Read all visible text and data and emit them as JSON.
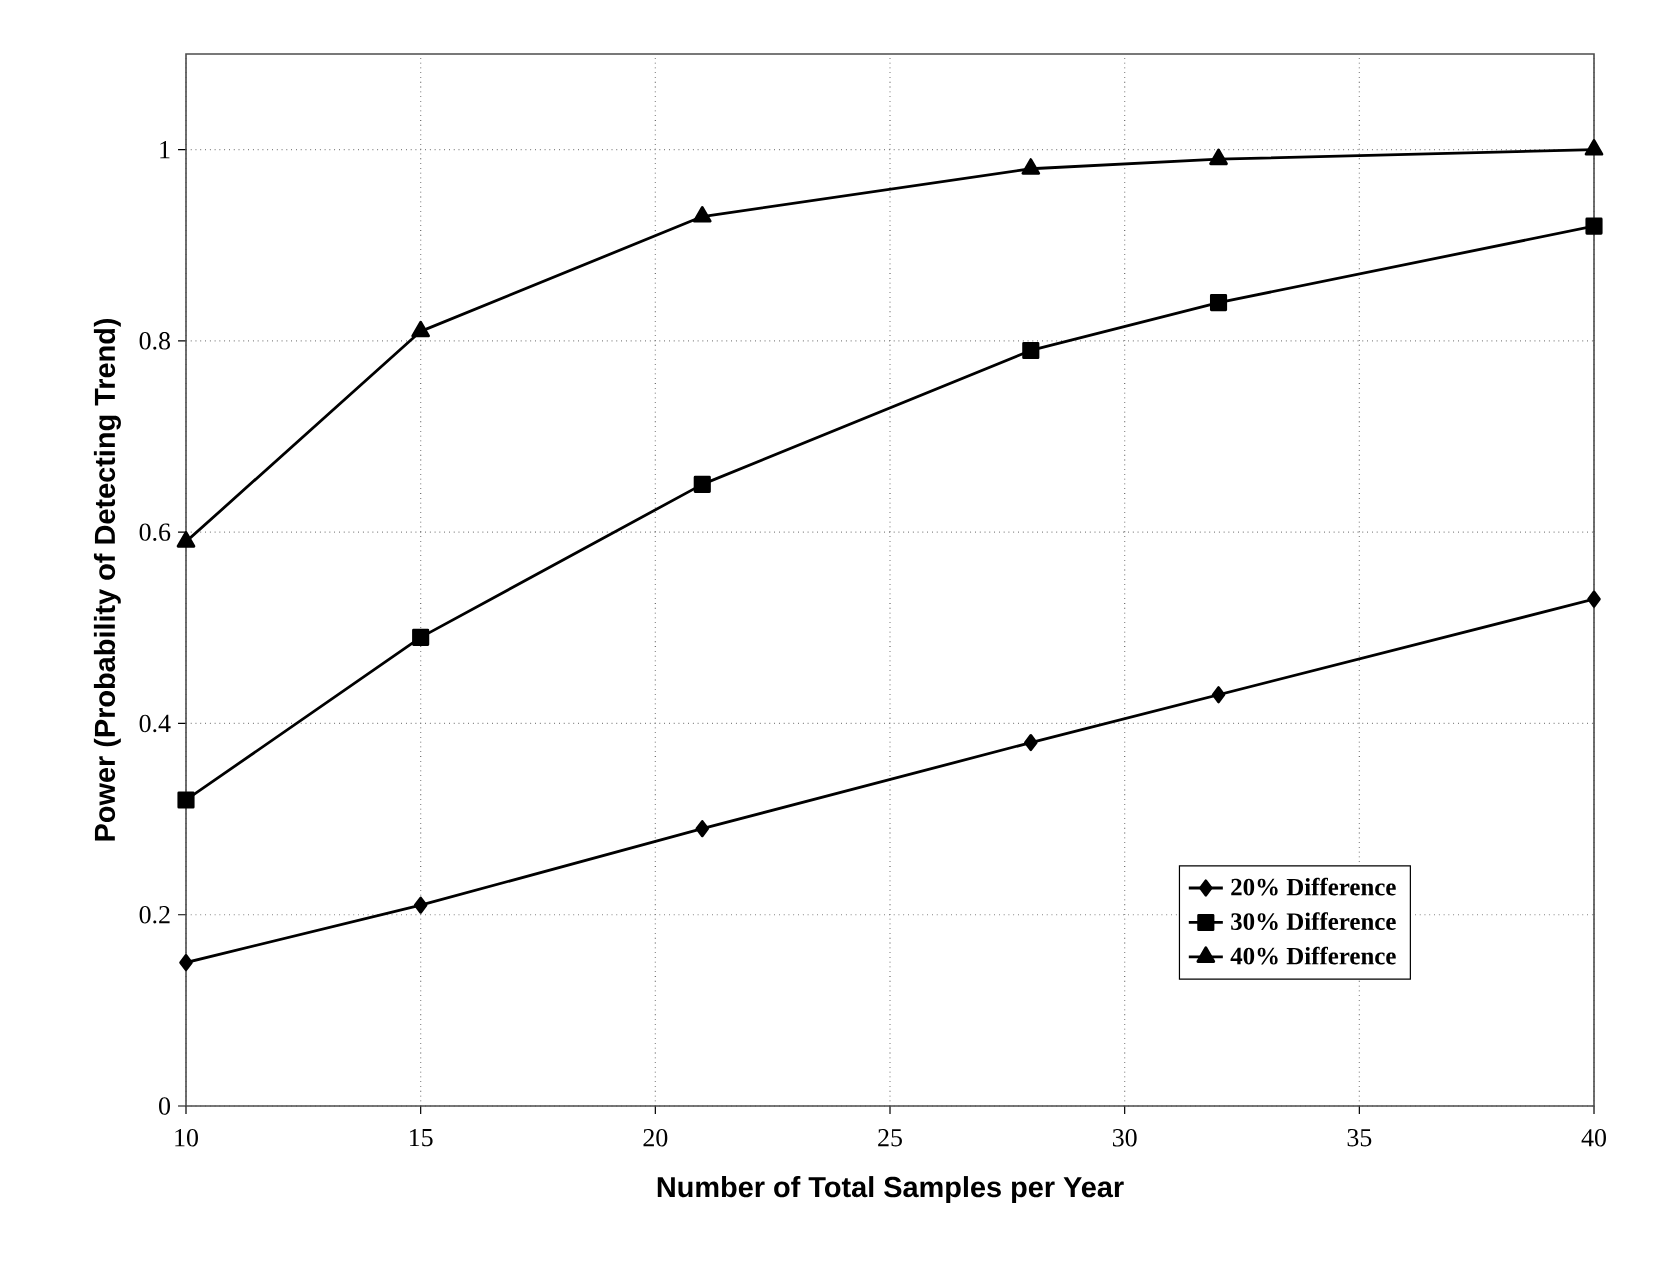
{
  "chart_data": {
    "type": "line",
    "xlabel": "Number of Total Samples per Year",
    "ylabel": "Power (Probability of Detecting Trend)",
    "xlim": [
      10,
      40
    ],
    "xticks": [
      10,
      15,
      20,
      25,
      30,
      35,
      40
    ],
    "ylim": [
      0,
      1.1
    ],
    "yticks": [
      0,
      0.2,
      0.4,
      0.6,
      0.8,
      1
    ],
    "grid": true,
    "legend": "bottom right",
    "line_style": "solid",
    "x": [
      10,
      15,
      21,
      28,
      32,
      40
    ],
    "series": [
      {
        "name": "20% Difference",
        "color": "#000000",
        "marker": "diamond",
        "values": [
          0.15,
          0.21,
          0.29,
          0.38,
          0.43,
          0.53
        ]
      },
      {
        "name": "30% Difference",
        "color": "#000000",
        "marker": "square",
        "values": [
          0.32,
          0.49,
          0.65,
          0.79,
          0.84,
          0.92
        ]
      },
      {
        "name": "40% Difference",
        "color": "#000000",
        "marker": "triangle",
        "values": [
          0.59,
          0.81,
          0.93,
          0.98,
          0.99,
          1.0
        ]
      }
    ]
  }
}
